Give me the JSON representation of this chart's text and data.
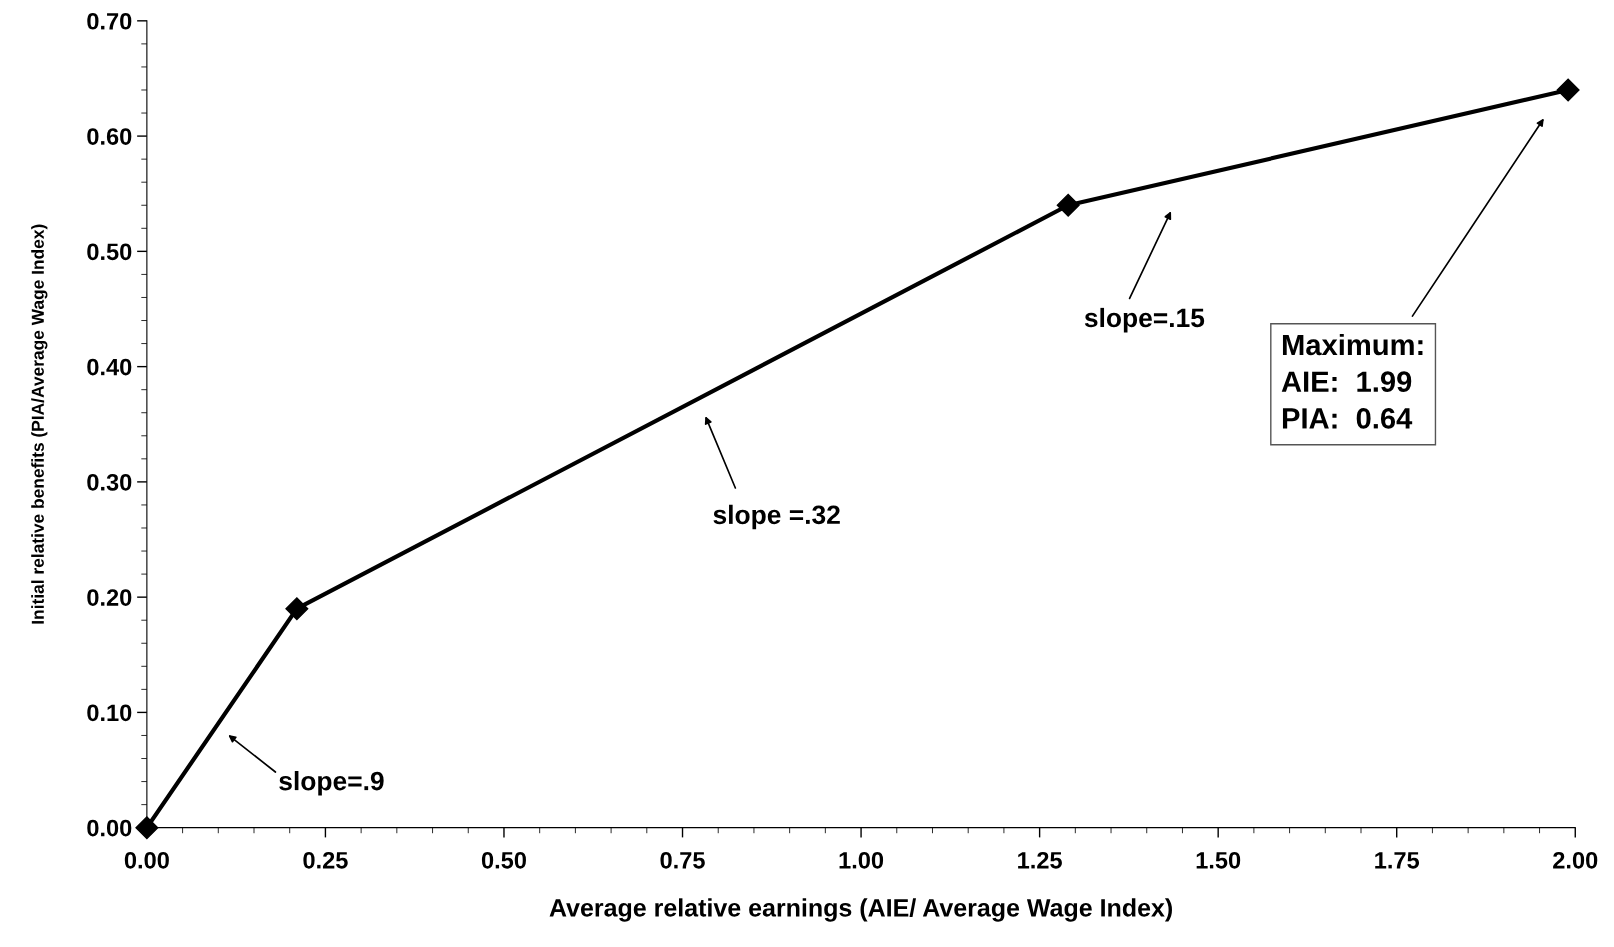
{
  "chart_data": {
    "type": "line",
    "xlabel": "Average relative earnings (AIE/ Average Wage Index)",
    "ylabel": "Initial relative benefits (PIA/Average Wage Index)",
    "x": [
      0,
      0.21,
      1.29,
      1.99
    ],
    "series": [
      {
        "color": "#000000",
        "values": [
          0,
          0.19,
          0.54,
          0.64
        ]
      }
    ],
    "marker": "diamond",
    "line_style": "solid",
    "xlim": [
      0,
      2
    ],
    "xticks": [
      {
        "value": 0,
        "label": "0.00"
      },
      {
        "value": 0.25,
        "label": "0.25"
      },
      {
        "value": 0.5,
        "label": "0.50"
      },
      {
        "value": 0.75,
        "label": "0.75"
      },
      {
        "value": 1,
        "label": "1.00"
      },
      {
        "value": 1.25,
        "label": "1.25"
      },
      {
        "value": 1.5,
        "label": "1.50"
      },
      {
        "value": 1.75,
        "label": "1.75"
      },
      {
        "value": 2,
        "label": "2.00"
      }
    ],
    "ylim": [
      0,
      0.7
    ],
    "yticks": [
      {
        "value": 0,
        "label": "0.00"
      },
      {
        "value": 0.1,
        "label": "0.10"
      },
      {
        "value": 0.2,
        "label": "0.20"
      },
      {
        "value": 0.3,
        "label": "0.30"
      },
      {
        "value": 0.4,
        "label": "0.40"
      },
      {
        "value": 0.5,
        "label": "0.50"
      },
      {
        "value": 0.6,
        "label": "0.60"
      },
      {
        "value": 0.7,
        "label": "0.70"
      }
    ],
    "grid": false,
    "legend": false,
    "annotations": [
      "slope=.9",
      "slope =.32",
      "slope=.15",
      "Maximum:\nAIE:  1.99\nPIA:  0.64"
    ]
  }
}
